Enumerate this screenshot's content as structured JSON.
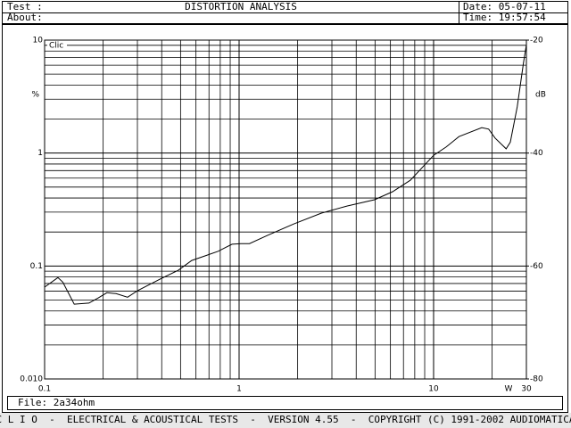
{
  "header": {
    "test": "Test :",
    "about": "About:",
    "title": "DISTORTION ANALYSIS",
    "date": "Date: 05-07-11",
    "time": "Time: 19:57:54"
  },
  "chart_data": {
    "type": "line",
    "color": "#000000",
    "x": [
      0.1,
      0.117,
      0.124,
      0.142,
      0.169,
      0.188,
      0.209,
      0.233,
      0.267,
      0.303,
      0.395,
      0.488,
      0.571,
      0.67,
      0.78,
      0.92,
      1.02,
      1.13,
      1.4,
      1.92,
      2.65,
      3.6,
      4.97,
      6.15,
      7.6,
      10,
      11.6,
      13.5,
      17.7,
      19.2,
      20.7,
      23.6,
      24.8,
      26.9,
      29,
      30
    ],
    "values": [
      0.065,
      0.079,
      0.072,
      0.046,
      0.047,
      0.052,
      0.058,
      0.057,
      0.053,
      0.061,
      0.077,
      0.092,
      0.112,
      0.123,
      0.135,
      0.156,
      0.158,
      0.158,
      0.187,
      0.237,
      0.294,
      0.34,
      0.386,
      0.455,
      0.575,
      0.955,
      1.13,
      1.4,
      1.68,
      1.63,
      1.36,
      1.09,
      1.25,
      2.56,
      6.35,
      9.1
    ],
    "xlim": [
      0.1,
      30
    ],
    "ylim": [
      0.01,
      10
    ],
    "y2lim": [
      -80,
      -20
    ],
    "xticks": [
      0.1,
      1,
      10,
      30
    ],
    "yticks": [
      10,
      1,
      0.1,
      {
        "value": 0.01,
        "label": "0.010"
      }
    ],
    "y2ticks": [
      -20,
      -40,
      -60,
      -80
    ],
    "xlog": true,
    "ylog": true,
    "grid": true,
    "xlabel": "W",
    "ylabel": "%",
    "y2label": "dB",
    "annotation": "Clic"
  },
  "footer": {
    "file": "File: 2a34ohm",
    "credits": "C L I O  -  ELECTRICAL & ACOUSTICAL TESTS  -  VERSION 4.55  -  COPYRIGHT (C) 1991-2002 AUDIOMATICA"
  }
}
